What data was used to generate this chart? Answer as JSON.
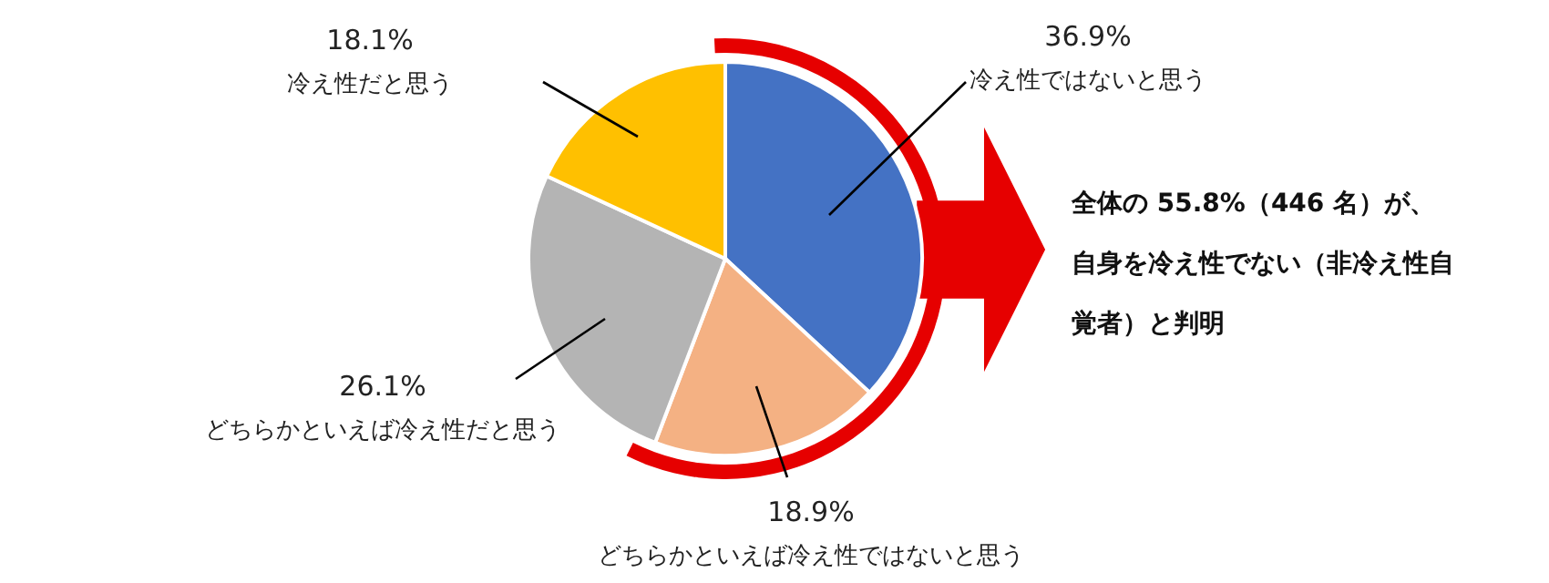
{
  "chart_data": {
    "type": "pie",
    "categories": [
      "冷え性ではないと思う",
      "どちらかといえば冷え性ではないと思う",
      "どちらかといえば冷え性だと思う",
      "冷え性だと思う"
    ],
    "values": [
      36.9,
      18.9,
      26.1,
      18.1
    ],
    "colors": [
      "#4472c4",
      "#f4b183",
      "#b4b4b4",
      "#ffc000"
    ],
    "value_labels": [
      "36.9%",
      "18.9%",
      "26.1%",
      "18.1%"
    ],
    "annotations": [
      "全体の 55.8%（446 名）が、自身を冷え性でない（非冷え性自覚者）と判明"
    ]
  }
}
